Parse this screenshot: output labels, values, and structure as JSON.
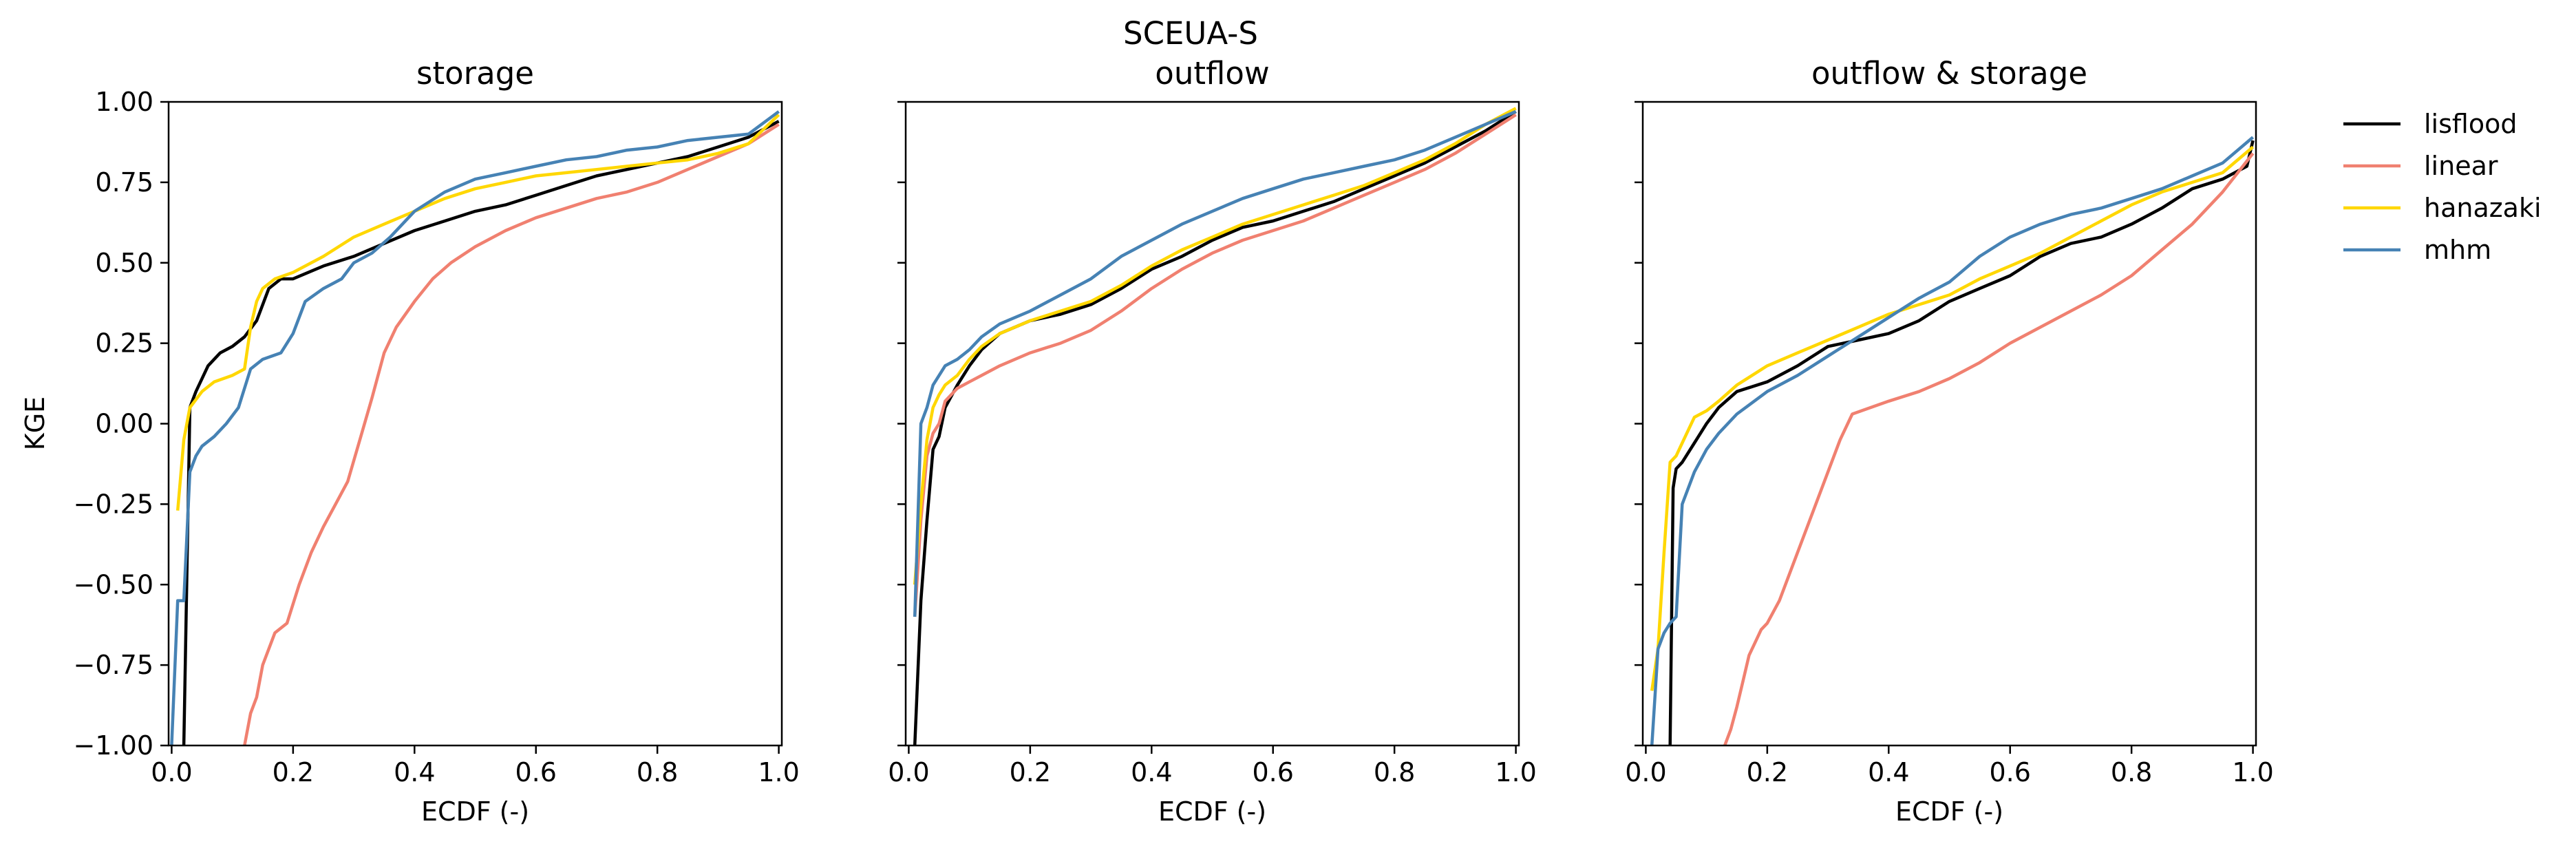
{
  "figure": {
    "suptitle": "SCEUA-S",
    "ylabel": "KGE",
    "colors": {
      "lisflood": "#000000",
      "linear": "#f08070",
      "hanazaki": "#ffd700",
      "mhm": "#4682b4"
    },
    "legend": {
      "placement": "right-top",
      "entries": [
        "lisflood",
        "linear",
        "hanazaki",
        "mhm"
      ]
    }
  },
  "chart_data": [
    {
      "type": "line",
      "title": "storage",
      "xlabel": "ECDF (-)",
      "ylabel": "KGE",
      "xlim": [
        -0.005,
        1.005
      ],
      "ylim": [
        -1.0,
        1.0
      ],
      "xticks": [
        "0.0",
        "0.2",
        "0.4",
        "0.6",
        "0.8",
        "1.0"
      ],
      "yticks": [
        "−1.00",
        "−0.75",
        "−0.50",
        "−0.25",
        "0.00",
        "0.25",
        "0.50",
        "0.75",
        "1.00"
      ],
      "grid": false,
      "series": [
        {
          "name": "lisflood",
          "x": [
            0.02,
            0.03,
            0.04,
            0.06,
            0.08,
            0.1,
            0.12,
            0.14,
            0.16,
            0.18,
            0.2,
            0.25,
            0.3,
            0.35,
            0.4,
            0.45,
            0.5,
            0.55,
            0.6,
            0.65,
            0.7,
            0.75,
            0.8,
            0.85,
            0.9,
            0.95,
            1.0
          ],
          "y": [
            -1.0,
            0.05,
            0.1,
            0.18,
            0.22,
            0.24,
            0.27,
            0.32,
            0.42,
            0.45,
            0.45,
            0.49,
            0.52,
            0.56,
            0.6,
            0.63,
            0.66,
            0.68,
            0.71,
            0.74,
            0.77,
            0.79,
            0.81,
            0.83,
            0.86,
            0.89,
            0.94
          ]
        },
        {
          "name": "linear",
          "x": [
            0.12,
            0.13,
            0.14,
            0.15,
            0.17,
            0.19,
            0.21,
            0.23,
            0.25,
            0.27,
            0.29,
            0.31,
            0.33,
            0.35,
            0.37,
            0.4,
            0.43,
            0.46,
            0.5,
            0.55,
            0.6,
            0.65,
            0.7,
            0.75,
            0.8,
            0.85,
            0.9,
            0.95,
            1.0
          ],
          "y": [
            -1.0,
            -0.9,
            -0.85,
            -0.75,
            -0.65,
            -0.62,
            -0.5,
            -0.4,
            -0.32,
            -0.25,
            -0.18,
            -0.05,
            0.08,
            0.22,
            0.3,
            0.38,
            0.45,
            0.5,
            0.55,
            0.6,
            0.64,
            0.67,
            0.7,
            0.72,
            0.75,
            0.79,
            0.83,
            0.87,
            0.93
          ]
        },
        {
          "name": "hanazaki",
          "x": [
            0.01,
            0.02,
            0.03,
            0.05,
            0.07,
            0.1,
            0.12,
            0.13,
            0.14,
            0.15,
            0.17,
            0.2,
            0.25,
            0.3,
            0.35,
            0.4,
            0.45,
            0.5,
            0.55,
            0.6,
            0.65,
            0.7,
            0.75,
            0.8,
            0.85,
            0.9,
            0.95,
            1.0
          ],
          "y": [
            -0.27,
            -0.05,
            0.05,
            0.1,
            0.13,
            0.15,
            0.17,
            0.3,
            0.38,
            0.42,
            0.45,
            0.47,
            0.52,
            0.58,
            0.62,
            0.66,
            0.7,
            0.73,
            0.75,
            0.77,
            0.78,
            0.79,
            0.8,
            0.81,
            0.82,
            0.84,
            0.87,
            0.96
          ]
        },
        {
          "name": "mhm",
          "x": [
            0.0,
            0.01,
            0.02,
            0.03,
            0.04,
            0.05,
            0.07,
            0.09,
            0.11,
            0.13,
            0.15,
            0.18,
            0.2,
            0.22,
            0.25,
            0.28,
            0.3,
            0.33,
            0.36,
            0.4,
            0.45,
            0.5,
            0.55,
            0.6,
            0.65,
            0.7,
            0.75,
            0.8,
            0.85,
            0.9,
            0.95,
            1.0
          ],
          "y": [
            -1.0,
            -0.55,
            -0.55,
            -0.15,
            -0.1,
            -0.07,
            -0.04,
            0.0,
            0.05,
            0.17,
            0.2,
            0.22,
            0.28,
            0.38,
            0.42,
            0.45,
            0.5,
            0.53,
            0.58,
            0.66,
            0.72,
            0.76,
            0.78,
            0.8,
            0.82,
            0.83,
            0.85,
            0.86,
            0.88,
            0.89,
            0.9,
            0.97
          ]
        }
      ]
    },
    {
      "type": "line",
      "title": "outflow",
      "xlabel": "ECDF (-)",
      "ylabel": "",
      "xlim": [
        -0.005,
        1.005
      ],
      "ylim": [
        -1.0,
        1.0
      ],
      "xticks": [
        "0.0",
        "0.2",
        "0.4",
        "0.6",
        "0.8",
        "1.0"
      ],
      "grid": false,
      "series": [
        {
          "name": "lisflood",
          "x": [
            0.01,
            0.02,
            0.03,
            0.04,
            0.05,
            0.06,
            0.08,
            0.1,
            0.12,
            0.15,
            0.2,
            0.25,
            0.3,
            0.35,
            0.4,
            0.45,
            0.5,
            0.55,
            0.6,
            0.65,
            0.7,
            0.75,
            0.8,
            0.85,
            0.9,
            0.95,
            1.0
          ],
          "y": [
            -1.0,
            -0.55,
            -0.3,
            -0.08,
            -0.04,
            0.05,
            0.12,
            0.18,
            0.23,
            0.28,
            0.32,
            0.34,
            0.37,
            0.42,
            0.48,
            0.52,
            0.57,
            0.61,
            0.63,
            0.66,
            0.69,
            0.73,
            0.77,
            0.81,
            0.86,
            0.91,
            0.97
          ]
        },
        {
          "name": "linear",
          "x": [
            0.01,
            0.02,
            0.03,
            0.04,
            0.05,
            0.06,
            0.08,
            0.1,
            0.12,
            0.15,
            0.2,
            0.25,
            0.3,
            0.35,
            0.4,
            0.45,
            0.5,
            0.55,
            0.6,
            0.65,
            0.7,
            0.75,
            0.8,
            0.85,
            0.9,
            0.95,
            1.0
          ],
          "y": [
            -0.6,
            -0.3,
            -0.1,
            -0.03,
            0.0,
            0.07,
            0.11,
            0.13,
            0.15,
            0.18,
            0.22,
            0.25,
            0.29,
            0.35,
            0.42,
            0.48,
            0.53,
            0.57,
            0.6,
            0.63,
            0.67,
            0.71,
            0.75,
            0.79,
            0.84,
            0.9,
            0.96
          ]
        },
        {
          "name": "hanazaki",
          "x": [
            0.01,
            0.02,
            0.03,
            0.04,
            0.05,
            0.06,
            0.08,
            0.1,
            0.12,
            0.15,
            0.2,
            0.25,
            0.3,
            0.35,
            0.4,
            0.45,
            0.5,
            0.55,
            0.6,
            0.65,
            0.7,
            0.75,
            0.8,
            0.85,
            0.9,
            0.95,
            1.0
          ],
          "y": [
            -0.5,
            -0.25,
            -0.05,
            0.05,
            0.09,
            0.12,
            0.15,
            0.2,
            0.24,
            0.28,
            0.32,
            0.35,
            0.38,
            0.43,
            0.49,
            0.54,
            0.58,
            0.62,
            0.65,
            0.68,
            0.71,
            0.74,
            0.78,
            0.82,
            0.87,
            0.93,
            0.98
          ]
        },
        {
          "name": "mhm",
          "x": [
            0.01,
            0.02,
            0.03,
            0.04,
            0.05,
            0.06,
            0.08,
            0.1,
            0.12,
            0.15,
            0.2,
            0.25,
            0.3,
            0.35,
            0.4,
            0.45,
            0.5,
            0.55,
            0.6,
            0.65,
            0.7,
            0.75,
            0.8,
            0.85,
            0.9,
            0.95,
            1.0
          ],
          "y": [
            -0.6,
            0.0,
            0.05,
            0.12,
            0.15,
            0.18,
            0.2,
            0.23,
            0.27,
            0.31,
            0.35,
            0.4,
            0.45,
            0.52,
            0.57,
            0.62,
            0.66,
            0.7,
            0.73,
            0.76,
            0.78,
            0.8,
            0.82,
            0.85,
            0.89,
            0.93,
            0.97
          ]
        }
      ]
    },
    {
      "type": "line",
      "title": "outflow & storage",
      "xlabel": "ECDF (-)",
      "ylabel": "",
      "xlim": [
        -0.005,
        1.005
      ],
      "ylim": [
        -1.0,
        1.0
      ],
      "xticks": [
        "0.0",
        "0.2",
        "0.4",
        "0.6",
        "0.8",
        "1.0"
      ],
      "grid": false,
      "series": [
        {
          "name": "lisflood",
          "x": [
            0.04,
            0.045,
            0.05,
            0.06,
            0.08,
            0.1,
            0.12,
            0.15,
            0.2,
            0.25,
            0.3,
            0.35,
            0.4,
            0.45,
            0.5,
            0.55,
            0.6,
            0.65,
            0.7,
            0.75,
            0.8,
            0.85,
            0.9,
            0.95,
            0.99,
            1.0
          ],
          "y": [
            -1.0,
            -0.2,
            -0.14,
            -0.12,
            -0.06,
            0.0,
            0.05,
            0.1,
            0.13,
            0.18,
            0.24,
            0.26,
            0.28,
            0.32,
            0.38,
            0.42,
            0.46,
            0.52,
            0.56,
            0.58,
            0.62,
            0.67,
            0.73,
            0.76,
            0.8,
            0.88
          ]
        },
        {
          "name": "linear",
          "x": [
            0.13,
            0.14,
            0.15,
            0.16,
            0.17,
            0.18,
            0.19,
            0.2,
            0.22,
            0.24,
            0.26,
            0.28,
            0.3,
            0.32,
            0.34,
            0.37,
            0.4,
            0.45,
            0.5,
            0.55,
            0.6,
            0.65,
            0.7,
            0.75,
            0.8,
            0.85,
            0.9,
            0.95,
            1.0
          ],
          "y": [
            -1.0,
            -0.95,
            -0.88,
            -0.8,
            -0.72,
            -0.68,
            -0.64,
            -0.62,
            -0.55,
            -0.45,
            -0.35,
            -0.25,
            -0.15,
            -0.05,
            0.03,
            0.05,
            0.07,
            0.1,
            0.14,
            0.19,
            0.25,
            0.3,
            0.35,
            0.4,
            0.46,
            0.54,
            0.62,
            0.72,
            0.84
          ]
        },
        {
          "name": "hanazaki",
          "x": [
            0.01,
            0.02,
            0.03,
            0.04,
            0.05,
            0.06,
            0.08,
            0.1,
            0.12,
            0.15,
            0.2,
            0.25,
            0.3,
            0.35,
            0.4,
            0.45,
            0.5,
            0.55,
            0.6,
            0.65,
            0.7,
            0.75,
            0.8,
            0.85,
            0.9,
            0.95,
            1.0
          ],
          "y": [
            -0.83,
            -0.7,
            -0.4,
            -0.12,
            -0.1,
            -0.06,
            0.02,
            0.04,
            0.07,
            0.12,
            0.18,
            0.22,
            0.26,
            0.3,
            0.34,
            0.37,
            0.4,
            0.45,
            0.49,
            0.53,
            0.58,
            0.63,
            0.68,
            0.72,
            0.75,
            0.78,
            0.86
          ]
        },
        {
          "name": "mhm",
          "x": [
            0.01,
            0.02,
            0.03,
            0.04,
            0.05,
            0.06,
            0.08,
            0.1,
            0.12,
            0.15,
            0.2,
            0.25,
            0.3,
            0.35,
            0.4,
            0.45,
            0.5,
            0.55,
            0.6,
            0.65,
            0.7,
            0.75,
            0.8,
            0.85,
            0.9,
            0.95,
            1.0
          ],
          "y": [
            -1.0,
            -0.7,
            -0.65,
            -0.62,
            -0.6,
            -0.25,
            -0.15,
            -0.08,
            -0.03,
            0.03,
            0.1,
            0.15,
            0.21,
            0.27,
            0.33,
            0.39,
            0.44,
            0.52,
            0.58,
            0.62,
            0.65,
            0.67,
            0.7,
            0.73,
            0.77,
            0.81,
            0.89
          ]
        }
      ]
    }
  ]
}
